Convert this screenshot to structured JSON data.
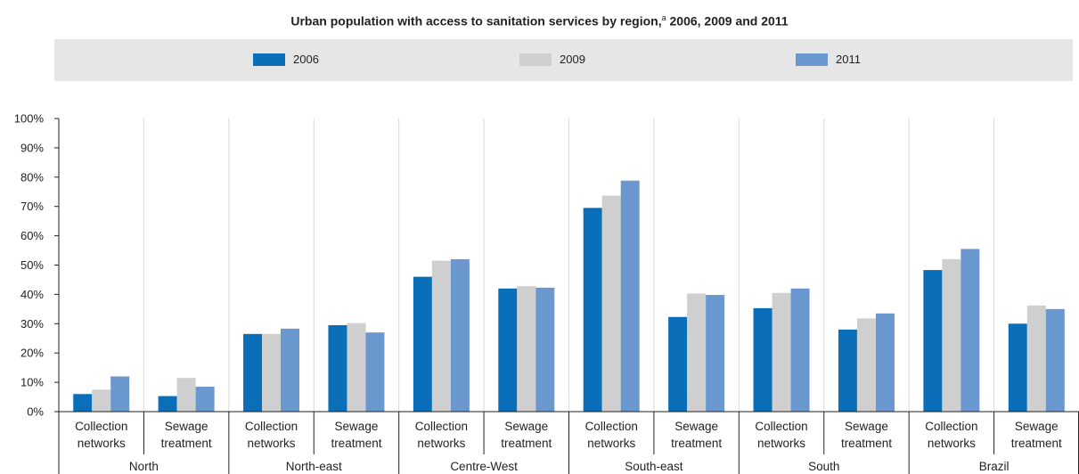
{
  "chart_data": {
    "type": "bar",
    "title": "Urban population with access to sanitation services by region,",
    "title_sup": "a",
    "title_tail": " 2006, 2009 and 2011",
    "regions": [
      "North",
      "North-east",
      "Centre-West",
      "South-east",
      "South",
      "Brazil"
    ],
    "subcategories": [
      [
        "Collection",
        "networks"
      ],
      [
        "Sewage",
        "treatment"
      ]
    ],
    "ylim": [
      0,
      100
    ],
    "yticks": [
      "0%",
      "10%",
      "20%",
      "30%",
      "40%",
      "50%",
      "60%",
      "70%",
      "80%",
      "90%",
      "100%"
    ],
    "legend_position": "top",
    "grid": "vertical separators",
    "series": [
      {
        "name": "2006",
        "color": "#0a6fb8",
        "values": [
          6,
          5.3,
          26.5,
          29.5,
          46,
          42,
          69.5,
          32.3,
          35.3,
          28,
          48.3,
          30
        ]
      },
      {
        "name": "2009",
        "color": "#cfcfcf",
        "values": [
          7.5,
          11.5,
          26.5,
          30.2,
          51.5,
          42.8,
          73.7,
          40.3,
          40.5,
          31.8,
          52,
          36.2
        ]
      },
      {
        "name": "2011",
        "color": "#6a97cd",
        "values": [
          12,
          8.5,
          28.3,
          27,
          52,
          42.3,
          78.8,
          39.8,
          42,
          33.5,
          55.5,
          35
        ]
      }
    ]
  }
}
